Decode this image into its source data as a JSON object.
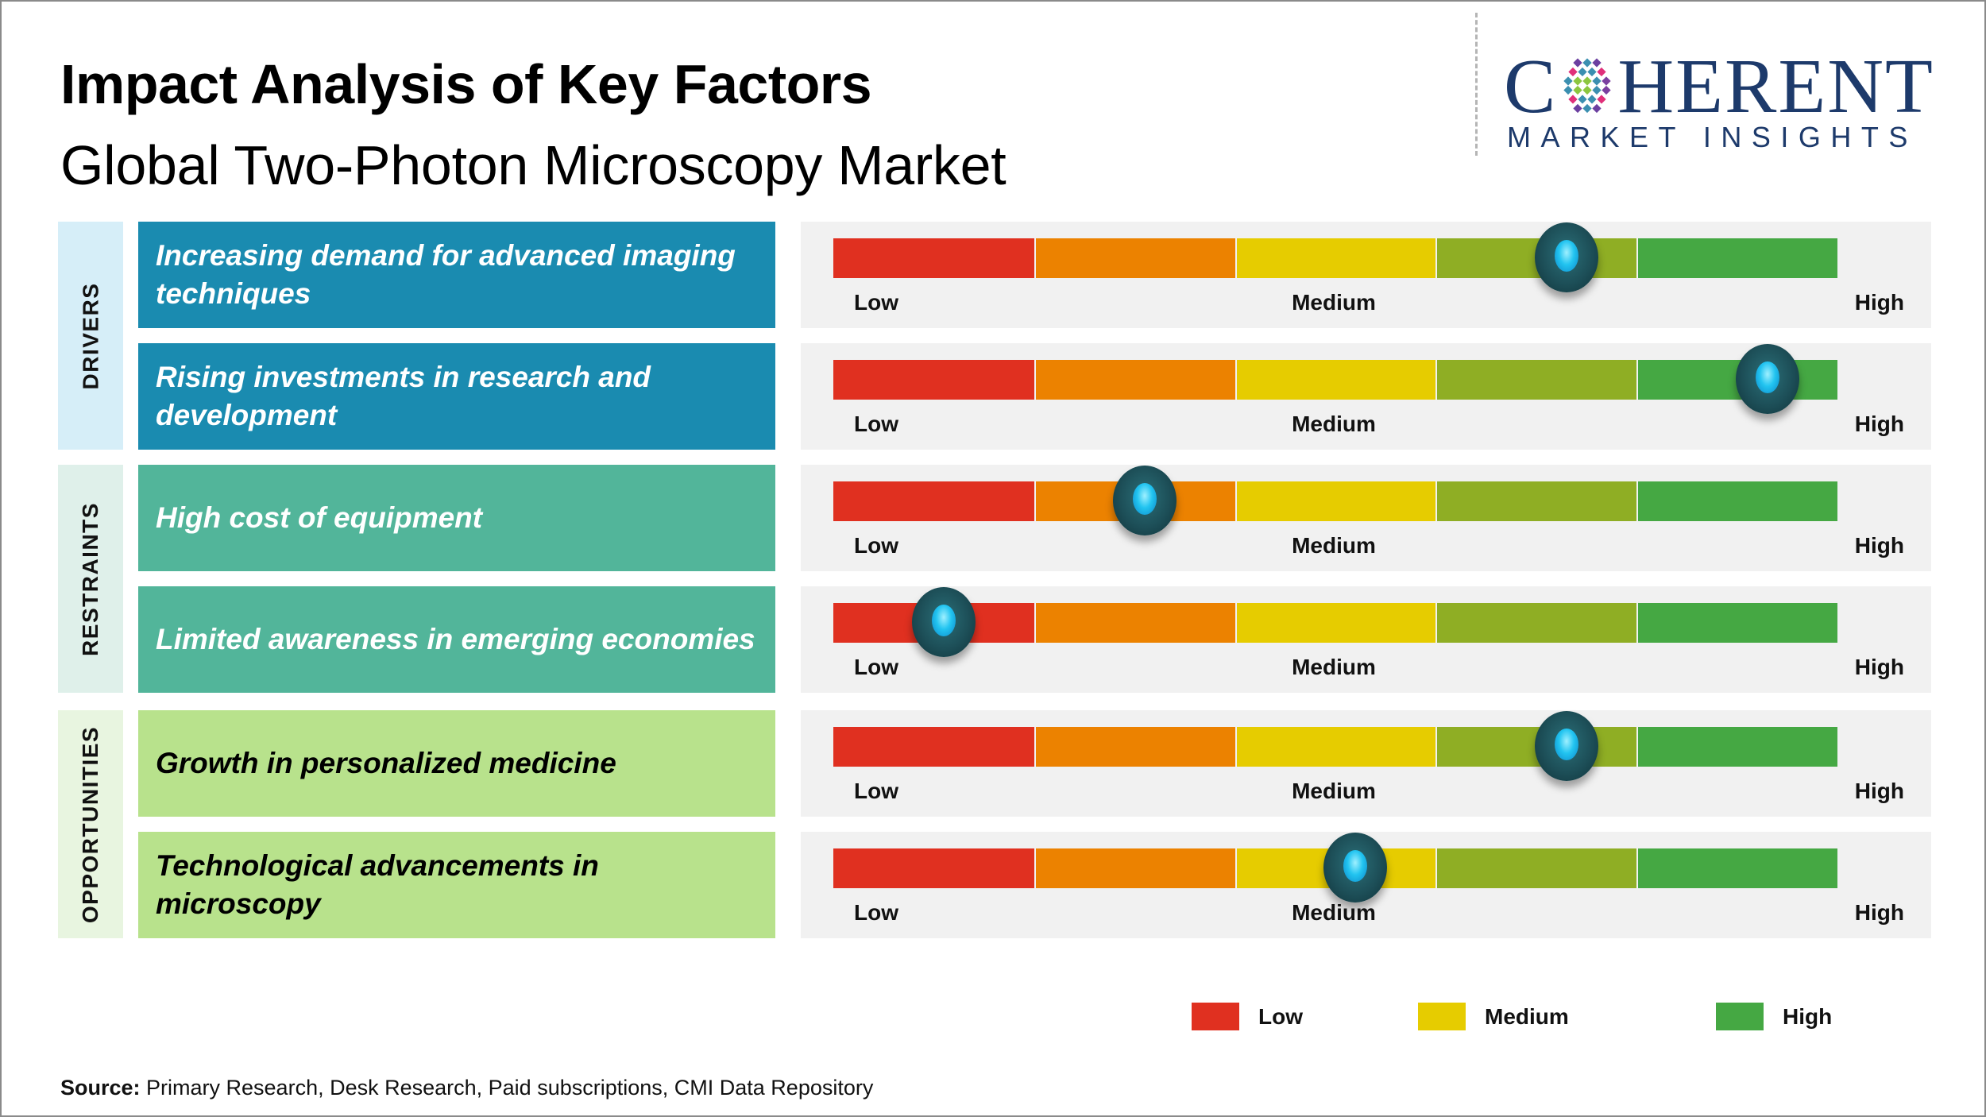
{
  "header": {
    "title": "Impact Analysis of Key Factors",
    "subtitle": "Global Two-Photon Microscopy Market"
  },
  "logo": {
    "brand_prefix": "C",
    "brand_suffix": "HERENT",
    "tagline": "MARKET INSIGHTS",
    "color": "#1d3a6b"
  },
  "scale_labels": {
    "low": "Low",
    "medium": "Medium",
    "high": "High"
  },
  "segment_colors": [
    "#e03020",
    "#ec8200",
    "#e6cc00",
    "#8fae24",
    "#45a843"
  ],
  "categories": [
    {
      "label": "DRIVERS",
      "bg": "#d6eef8",
      "box_color": "#1a8bb0",
      "text_color": "#ffffff"
    },
    {
      "label": "RESTRAINTS",
      "bg": "#dff0ea",
      "box_color": "#52b59a",
      "text_color": "#ffffff"
    },
    {
      "label": "OPPORTUNITIES",
      "bg": "#e8f5e0",
      "box_color": "#b8e28c",
      "text_color": "#000000"
    }
  ],
  "legend": [
    {
      "label": "Low",
      "color": "#e03020"
    },
    {
      "label": "Medium",
      "color": "#e6cc00"
    },
    {
      "label": "High",
      "color": "#45a843"
    }
  ],
  "source": {
    "prefix": "Source:",
    "text": " Primary Research, Desk Research, Paid subscriptions, CMI Data Repository"
  },
  "chart_data": {
    "type": "table",
    "title": "Impact Analysis of Key Factors",
    "subtitle": "Global Two-Photon Microscopy Market",
    "scale": {
      "min": 0,
      "max": 1,
      "labels": [
        "Low",
        "Medium",
        "High"
      ],
      "segments": 5
    },
    "rows": [
      {
        "category": "DRIVERS",
        "factor": "Increasing demand for advanced imaging techniques",
        "impact": 0.73
      },
      {
        "category": "DRIVERS",
        "factor": "Rising investments in research and development",
        "impact": 0.93
      },
      {
        "category": "RESTRAINTS",
        "factor": "High cost of equipment",
        "impact": 0.31
      },
      {
        "category": "RESTRAINTS",
        "factor": "Limited awareness in emerging economies",
        "impact": 0.11
      },
      {
        "category": "OPPORTUNITIES",
        "factor": "Growth in personalized medicine",
        "impact": 0.73
      },
      {
        "category": "OPPORTUNITIES",
        "factor": "Technological advancements in microscopy",
        "impact": 0.52
      }
    ],
    "legend": [
      "Low",
      "Medium",
      "High"
    ],
    "legend_position": "bottom-right"
  }
}
